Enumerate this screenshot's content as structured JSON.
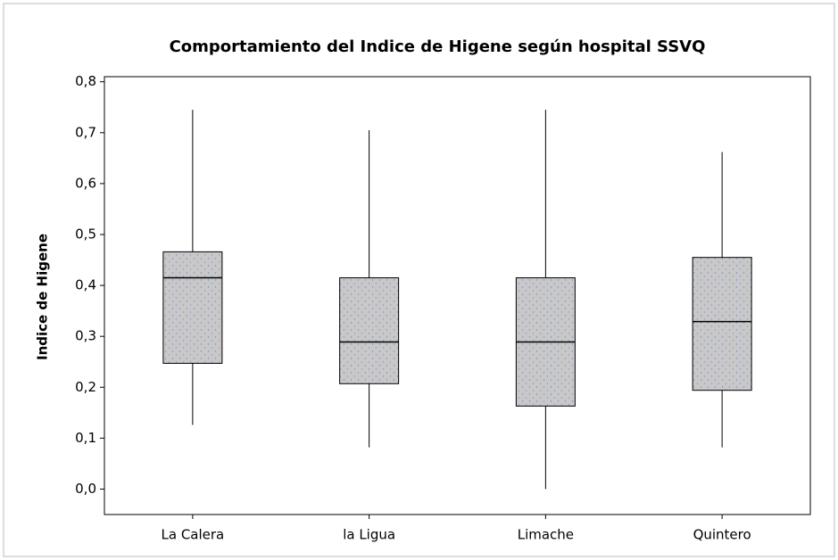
{
  "chart_data": {
    "type": "box",
    "title": "Comportamiento del Indice de Higene según hospital SSVQ",
    "y_label": "Indice de Higene",
    "categories": [
      "La Calera",
      "la Ligua",
      "Limache",
      "Quintero"
    ],
    "min": [
      0.126,
      0.082,
      0.0,
      0.082
    ],
    "q1": [
      0.247,
      0.207,
      0.163,
      0.194
    ],
    "median": [
      0.415,
      0.289,
      0.289,
      0.329
    ],
    "q3": [
      0.466,
      0.415,
      0.415,
      0.455
    ],
    "max": [
      0.745,
      0.705,
      0.745,
      0.662
    ],
    "color": "#c8c8c8",
    "ylim": [
      -0.05,
      0.81
    ],
    "yticks": [
      {
        "value": 0.0,
        "label": "0,0"
      },
      {
        "value": 0.1,
        "label": "0,1"
      },
      {
        "value": 0.2,
        "label": "0,2"
      },
      {
        "value": 0.3,
        "label": "0,3"
      },
      {
        "value": 0.4,
        "label": "0,4"
      },
      {
        "value": 0.5,
        "label": "0,5"
      },
      {
        "value": 0.6,
        "label": "0,6"
      },
      {
        "value": 0.7,
        "label": "0,7"
      },
      {
        "value": 0.8,
        "label": "0,8"
      }
    ],
    "grid": false
  }
}
